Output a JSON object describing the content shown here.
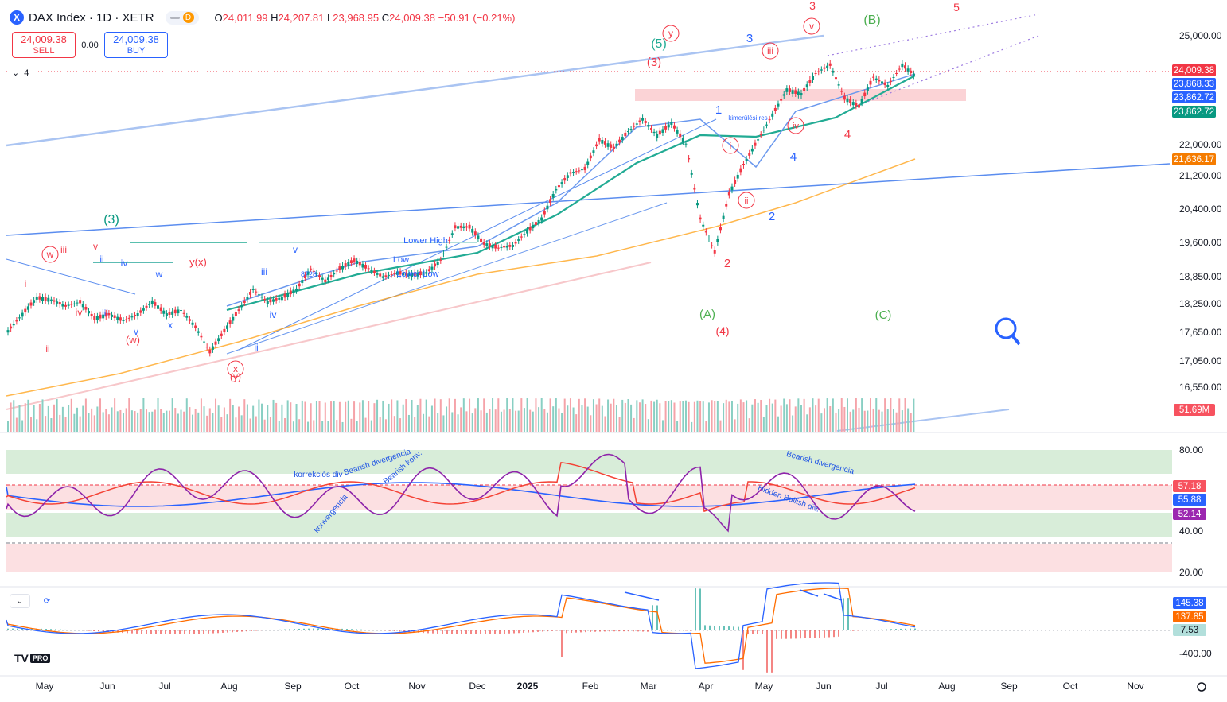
{
  "header": {
    "symbol_icon": "X",
    "title": "DAX Index · 1D · XETR",
    "badge_letter": "D",
    "ohlc": {
      "o_label": "O",
      "o": "24,011.99",
      "h_label": "H",
      "h": "24,207.81",
      "l_label": "L",
      "l": "23,968.95",
      "c_label": "C",
      "c": "24,009.38",
      "change": "−50.91 (−0.21%)"
    }
  },
  "trade": {
    "sell_price": "24,009.38",
    "sell_label": "SELL",
    "spread": "0.00",
    "buy_price": "24,009.38",
    "buy_label": "BUY"
  },
  "collapse": {
    "count": "4"
  },
  "colors": {
    "up": "#089981",
    "down": "#f23645",
    "price": "#f23645",
    "ma_fast": "#2962ff",
    "ma_mid": "#22ab94",
    "ma_slow": "#ff9800",
    "channel": "#5b8def"
  },
  "price_tags": [
    {
      "value": "24,009.38",
      "color": "#f23645"
    },
    {
      "value": "23,868.33",
      "color": "#2962ff"
    },
    {
      "value": "23,862.72",
      "color": "#2962ff"
    },
    {
      "value": "23,862.72",
      "color": "#089981"
    },
    {
      "value": "21,636.17",
      "color": "#f57c00"
    },
    {
      "value": "51.69M",
      "color": "#f7525f"
    }
  ],
  "rsi_tags": [
    {
      "value": "57.18",
      "color": "#f7525f"
    },
    {
      "value": "55.88",
      "color": "#2962ff"
    },
    {
      "value": "52.14",
      "color": "#9c27b0"
    }
  ],
  "macd_tags": [
    {
      "value": "145.38",
      "color": "#2962ff"
    },
    {
      "value": "137.85",
      "color": "#ff6d00"
    },
    {
      "value": "7.53",
      "color": "#b2dfdb"
    }
  ],
  "chart_data": {
    "type": "candlestick",
    "x_axis": [
      "May",
      "Jun",
      "Jul",
      "Aug",
      "Sep",
      "Oct",
      "Nov",
      "Dec",
      "2025",
      "Feb",
      "Mar",
      "Apr",
      "May",
      "Jun",
      "Jul",
      "Aug",
      "Sep",
      "Oct",
      "Nov"
    ],
    "price_ticks": [
      "25,000.00",
      "22,000.00",
      "21,200.00",
      "20,400.00",
      "19,600.00",
      "18,850.00",
      "18,250.00",
      "17,650.00",
      "17,050.00",
      "16,550.00"
    ],
    "rsi_ticks": [
      "80.00",
      "40.00",
      "20.00"
    ],
    "macd_ticks": [
      "-400.00"
    ],
    "close_path": [
      [
        "2024-04-29",
        17900
      ],
      [
        "2024-05-06",
        18300
      ],
      [
        "2024-05-13",
        18700
      ],
      [
        "2024-05-20",
        18650
      ],
      [
        "2024-05-27",
        18500
      ],
      [
        "2024-06-03",
        18600
      ],
      [
        "2024-06-10",
        18200
      ],
      [
        "2024-06-17",
        18300
      ],
      [
        "2024-06-24",
        18150
      ],
      [
        "2024-07-01",
        18300
      ],
      [
        "2024-07-08",
        18600
      ],
      [
        "2024-07-15",
        18300
      ],
      [
        "2024-07-22",
        18400
      ],
      [
        "2024-07-29",
        18000
      ],
      [
        "2024-08-05",
        17400
      ],
      [
        "2024-08-12",
        17900
      ],
      [
        "2024-08-19",
        18400
      ],
      [
        "2024-08-26",
        18900
      ],
      [
        "2024-09-02",
        18600
      ],
      [
        "2024-09-09",
        18700
      ],
      [
        "2024-09-16",
        18900
      ],
      [
        "2024-09-23",
        19400
      ],
      [
        "2024-09-30",
        19100
      ],
      [
        "2024-10-07",
        19400
      ],
      [
        "2024-10-14",
        19600
      ],
      [
        "2024-10-21",
        19400
      ],
      [
        "2024-10-28",
        19200
      ],
      [
        "2024-11-04",
        19300
      ],
      [
        "2024-11-11",
        19250
      ],
      [
        "2024-11-18",
        19300
      ],
      [
        "2024-11-25",
        19600
      ],
      [
        "2024-12-02",
        20400
      ],
      [
        "2024-12-09",
        20400
      ],
      [
        "2024-12-16",
        20000
      ],
      [
        "2024-12-23",
        19900
      ],
      [
        "2024-12-30",
        19950
      ],
      [
        "2025-01-06",
        20300
      ],
      [
        "2025-01-13",
        20600
      ],
      [
        "2025-01-20",
        21300
      ],
      [
        "2025-01-27",
        21700
      ],
      [
        "2025-02-03",
        21800
      ],
      [
        "2025-02-10",
        22500
      ],
      [
        "2025-02-17",
        22300
      ],
      [
        "2025-02-24",
        22700
      ],
      [
        "2025-03-03",
        23000
      ],
      [
        "2025-03-10",
        22600
      ],
      [
        "2025-03-17",
        22900
      ],
      [
        "2025-03-24",
        22400
      ],
      [
        "2025-03-31",
        20600
      ],
      [
        "2025-04-07",
        19800
      ],
      [
        "2025-04-14",
        21200
      ],
      [
        "2025-04-21",
        21900
      ],
      [
        "2025-04-28",
        22500
      ],
      [
        "2025-05-05",
        23100
      ],
      [
        "2025-05-12",
        23700
      ],
      [
        "2025-05-19",
        23600
      ],
      [
        "2025-05-26",
        24100
      ],
      [
        "2025-06-02",
        24300
      ],
      [
        "2025-06-09",
        23500
      ],
      [
        "2025-06-16",
        23300
      ],
      [
        "2025-06-23",
        24000
      ],
      [
        "2025-06-30",
        23800
      ],
      [
        "2025-07-07",
        24300
      ],
      [
        "2025-07-14",
        24009
      ]
    ],
    "annotations": [
      "(3)",
      "(5)",
      "(3)",
      "y",
      "3",
      "iii",
      "v",
      "3",
      "(B)",
      "5",
      "1",
      "i",
      "iv",
      "4",
      "ii",
      "2",
      "4",
      "(A)",
      "(4)",
      "(C)",
      "2",
      "kimerülési res",
      "w",
      "iii",
      "v",
      "ii",
      "iv",
      "y(x)",
      "w",
      "iii",
      "v",
      "i",
      "iv",
      "iii",
      "ii",
      "(w)",
      "v",
      "x",
      "x",
      "(y)",
      "ii",
      "iv",
      "8728",
      "Lower High",
      "Low",
      "Lower Low"
    ],
    "rsi_annotations": [
      "Bearish divergencia",
      "Bearish konv.",
      "korrekciós div",
      "konvergencia",
      "Bearish divergencia",
      "Hidden Bullish div."
    ]
  }
}
